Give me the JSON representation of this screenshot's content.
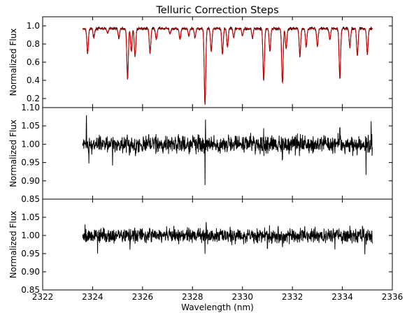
{
  "chart_data": {
    "type": "line",
    "title": "Telluric Correction Steps",
    "xlabel": "Wavelength (nm)",
    "xlim": [
      2322,
      2336
    ],
    "x_ticks": [
      2322,
      2324,
      2326,
      2328,
      2330,
      2332,
      2334,
      2336
    ],
    "x_tick_labels": [
      "2322",
      "2324",
      "2326",
      "2328",
      "2330",
      "2332",
      "2334",
      "2336"
    ],
    "data_x_range": [
      2323.6,
      2335.2
    ],
    "panels": [
      {
        "ylabel": "Normalized Flux",
        "ylim": [
          0.1,
          1.1
        ],
        "y_ticks": [
          0.2,
          0.4,
          0.6,
          0.8,
          1.0
        ],
        "y_tick_labels": [
          "0.2",
          "0.4",
          "0.6",
          "0.8",
          "1.0"
        ],
        "series": [
          {
            "color": "#000000",
            "continuum": 0.97,
            "noise": 0.008,
            "absorption_lines": [
              [
                2323.8,
                0.27
              ],
              [
                2324.05,
                0.1
              ],
              [
                2324.6,
                0.05
              ],
              [
                2325.05,
                0.1
              ],
              [
                2325.4,
                0.56
              ],
              [
                2325.55,
                0.25
              ],
              [
                2325.7,
                0.3
              ],
              [
                2326.3,
                0.27
              ],
              [
                2326.55,
                0.12
              ],
              [
                2327.1,
                0.06
              ],
              [
                2327.5,
                0.12
              ],
              [
                2327.85,
                0.08
              ],
              [
                2328.1,
                0.1
              ],
              [
                2328.5,
                0.84
              ],
              [
                2328.75,
                0.25
              ],
              [
                2329.2,
                0.28
              ],
              [
                2329.4,
                0.2
              ],
              [
                2329.65,
                0.1
              ],
              [
                2330.0,
                0.08
              ],
              [
                2330.4,
                0.1
              ],
              [
                2330.85,
                0.57
              ],
              [
                2331.1,
                0.25
              ],
              [
                2331.6,
                0.6
              ],
              [
                2331.75,
                0.22
              ],
              [
                2332.3,
                0.3
              ],
              [
                2332.55,
                0.2
              ],
              [
                2333.0,
                0.2
              ],
              [
                2333.5,
                0.12
              ],
              [
                2333.9,
                0.55
              ],
              [
                2334.3,
                0.2
              ],
              [
                2334.6,
                0.3
              ],
              [
                2335.0,
                0.28
              ]
            ]
          },
          {
            "color": "#cc0000",
            "continuum": 0.97,
            "noise": 0.0,
            "absorption_lines": [
              [
                2323.8,
                0.27
              ],
              [
                2324.05,
                0.1
              ],
              [
                2324.6,
                0.05
              ],
              [
                2325.05,
                0.1
              ],
              [
                2325.4,
                0.56
              ],
              [
                2325.55,
                0.25
              ],
              [
                2325.7,
                0.3
              ],
              [
                2326.3,
                0.27
              ],
              [
                2326.55,
                0.12
              ],
              [
                2327.1,
                0.06
              ],
              [
                2327.5,
                0.12
              ],
              [
                2327.85,
                0.08
              ],
              [
                2328.1,
                0.1
              ],
              [
                2328.5,
                0.84
              ],
              [
                2328.75,
                0.25
              ],
              [
                2329.2,
                0.28
              ],
              [
                2329.4,
                0.2
              ],
              [
                2329.65,
                0.1
              ],
              [
                2330.0,
                0.08
              ],
              [
                2330.4,
                0.1
              ],
              [
                2330.85,
                0.57
              ],
              [
                2331.1,
                0.25
              ],
              [
                2331.6,
                0.6
              ],
              [
                2331.75,
                0.22
              ],
              [
                2332.3,
                0.3
              ],
              [
                2332.55,
                0.2
              ],
              [
                2333.0,
                0.2
              ],
              [
                2333.5,
                0.12
              ],
              [
                2333.9,
                0.55
              ],
              [
                2334.3,
                0.2
              ],
              [
                2334.6,
                0.3
              ],
              [
                2335.0,
                0.28
              ]
            ]
          }
        ]
      },
      {
        "ylabel": "Normalized Flux",
        "ylim": [
          0.85,
          1.1
        ],
        "y_ticks": [
          0.85,
          0.9,
          0.95,
          1.0,
          1.05,
          1.1
        ],
        "y_tick_labels": [
          "0.85",
          "0.90",
          "0.95",
          "1.00",
          "1.05",
          "1.10"
        ],
        "series": [
          {
            "color": "#000000",
            "continuum": 1.0,
            "noise": 0.012,
            "spikes": [
              [
                2323.75,
                0.08
              ],
              [
                2323.85,
                -0.05
              ],
              [
                2324.8,
                -0.05
              ],
              [
                2325.35,
                -0.03
              ],
              [
                2328.5,
                -0.1
              ],
              [
                2328.52,
                0.07
              ],
              [
                2330.85,
                0.05
              ],
              [
                2331.6,
                -0.04
              ],
              [
                2333.9,
                0.04
              ],
              [
                2334.95,
                -0.08
              ],
              [
                2335.15,
                0.04
              ]
            ]
          }
        ]
      },
      {
        "ylabel": "Normalized Flux",
        "ylim": [
          0.85,
          1.1
        ],
        "y_ticks": [
          0.85,
          0.9,
          0.95,
          1.0,
          1.05
        ],
        "y_tick_labels": [
          "0.85",
          "0.90",
          "0.95",
          "1.00",
          "1.05"
        ],
        "series": [
          {
            "color": "#000000",
            "continuum": 1.0,
            "noise": 0.01,
            "spikes": [
              [
                2323.7,
                0.03
              ],
              [
                2324.2,
                -0.04
              ],
              [
                2325.5,
                -0.04
              ],
              [
                2326.3,
                0.03
              ],
              [
                2328.5,
                -0.06
              ],
              [
                2328.55,
                0.03
              ],
              [
                2329.5,
                0.03
              ],
              [
                2331.0,
                -0.03
              ],
              [
                2331.6,
                -0.03
              ],
              [
                2333.7,
                -0.03
              ],
              [
                2334.9,
                -0.04
              ]
            ]
          }
        ]
      }
    ]
  }
}
